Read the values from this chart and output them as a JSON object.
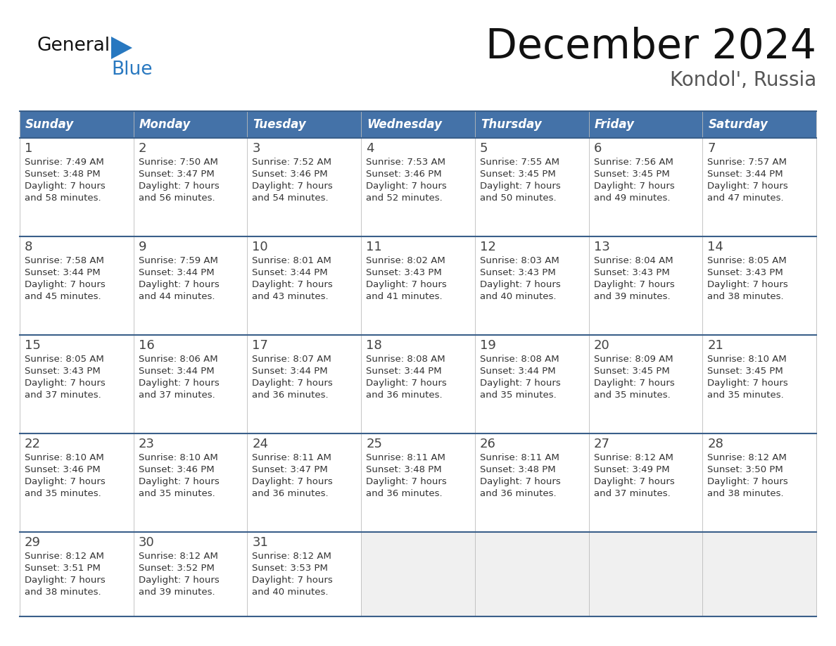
{
  "title": "December 2024",
  "subtitle": "Kondol', Russia",
  "header_bg": "#4472A8",
  "header_text_color": "#FFFFFF",
  "day_names": [
    "Sunday",
    "Monday",
    "Tuesday",
    "Wednesday",
    "Thursday",
    "Friday",
    "Saturday"
  ],
  "row_line_color": "#3A5F8A",
  "text_color": "#333333",
  "logo_general_color": "#1a1a1a",
  "logo_blue_color": "#2878C0",
  "days": [
    {
      "day": 1,
      "col": 0,
      "row": 0,
      "sunrise": "7:49 AM",
      "sunset": "3:48 PM",
      "daylight_h": "7",
      "daylight_m": "58"
    },
    {
      "day": 2,
      "col": 1,
      "row": 0,
      "sunrise": "7:50 AM",
      "sunset": "3:47 PM",
      "daylight_h": "7",
      "daylight_m": "56"
    },
    {
      "day": 3,
      "col": 2,
      "row": 0,
      "sunrise": "7:52 AM",
      "sunset": "3:46 PM",
      "daylight_h": "7",
      "daylight_m": "54"
    },
    {
      "day": 4,
      "col": 3,
      "row": 0,
      "sunrise": "7:53 AM",
      "sunset": "3:46 PM",
      "daylight_h": "7",
      "daylight_m": "52"
    },
    {
      "day": 5,
      "col": 4,
      "row": 0,
      "sunrise": "7:55 AM",
      "sunset": "3:45 PM",
      "daylight_h": "7",
      "daylight_m": "50"
    },
    {
      "day": 6,
      "col": 5,
      "row": 0,
      "sunrise": "7:56 AM",
      "sunset": "3:45 PM",
      "daylight_h": "7",
      "daylight_m": "49"
    },
    {
      "day": 7,
      "col": 6,
      "row": 0,
      "sunrise": "7:57 AM",
      "sunset": "3:44 PM",
      "daylight_h": "7",
      "daylight_m": "47"
    },
    {
      "day": 8,
      "col": 0,
      "row": 1,
      "sunrise": "7:58 AM",
      "sunset": "3:44 PM",
      "daylight_h": "7",
      "daylight_m": "45"
    },
    {
      "day": 9,
      "col": 1,
      "row": 1,
      "sunrise": "7:59 AM",
      "sunset": "3:44 PM",
      "daylight_h": "7",
      "daylight_m": "44"
    },
    {
      "day": 10,
      "col": 2,
      "row": 1,
      "sunrise": "8:01 AM",
      "sunset": "3:44 PM",
      "daylight_h": "7",
      "daylight_m": "43"
    },
    {
      "day": 11,
      "col": 3,
      "row": 1,
      "sunrise": "8:02 AM",
      "sunset": "3:43 PM",
      "daylight_h": "7",
      "daylight_m": "41"
    },
    {
      "day": 12,
      "col": 4,
      "row": 1,
      "sunrise": "8:03 AM",
      "sunset": "3:43 PM",
      "daylight_h": "7",
      "daylight_m": "40"
    },
    {
      "day": 13,
      "col": 5,
      "row": 1,
      "sunrise": "8:04 AM",
      "sunset": "3:43 PM",
      "daylight_h": "7",
      "daylight_m": "39"
    },
    {
      "day": 14,
      "col": 6,
      "row": 1,
      "sunrise": "8:05 AM",
      "sunset": "3:43 PM",
      "daylight_h": "7",
      "daylight_m": "38"
    },
    {
      "day": 15,
      "col": 0,
      "row": 2,
      "sunrise": "8:05 AM",
      "sunset": "3:43 PM",
      "daylight_h": "7",
      "daylight_m": "37"
    },
    {
      "day": 16,
      "col": 1,
      "row": 2,
      "sunrise": "8:06 AM",
      "sunset": "3:44 PM",
      "daylight_h": "7",
      "daylight_m": "37"
    },
    {
      "day": 17,
      "col": 2,
      "row": 2,
      "sunrise": "8:07 AM",
      "sunset": "3:44 PM",
      "daylight_h": "7",
      "daylight_m": "36"
    },
    {
      "day": 18,
      "col": 3,
      "row": 2,
      "sunrise": "8:08 AM",
      "sunset": "3:44 PM",
      "daylight_h": "7",
      "daylight_m": "36"
    },
    {
      "day": 19,
      "col": 4,
      "row": 2,
      "sunrise": "8:08 AM",
      "sunset": "3:44 PM",
      "daylight_h": "7",
      "daylight_m": "35"
    },
    {
      "day": 20,
      "col": 5,
      "row": 2,
      "sunrise": "8:09 AM",
      "sunset": "3:45 PM",
      "daylight_h": "7",
      "daylight_m": "35"
    },
    {
      "day": 21,
      "col": 6,
      "row": 2,
      "sunrise": "8:10 AM",
      "sunset": "3:45 PM",
      "daylight_h": "7",
      "daylight_m": "35"
    },
    {
      "day": 22,
      "col": 0,
      "row": 3,
      "sunrise": "8:10 AM",
      "sunset": "3:46 PM",
      "daylight_h": "7",
      "daylight_m": "35"
    },
    {
      "day": 23,
      "col": 1,
      "row": 3,
      "sunrise": "8:10 AM",
      "sunset": "3:46 PM",
      "daylight_h": "7",
      "daylight_m": "35"
    },
    {
      "day": 24,
      "col": 2,
      "row": 3,
      "sunrise": "8:11 AM",
      "sunset": "3:47 PM",
      "daylight_h": "7",
      "daylight_m": "36"
    },
    {
      "day": 25,
      "col": 3,
      "row": 3,
      "sunrise": "8:11 AM",
      "sunset": "3:48 PM",
      "daylight_h": "7",
      "daylight_m": "36"
    },
    {
      "day": 26,
      "col": 4,
      "row": 3,
      "sunrise": "8:11 AM",
      "sunset": "3:48 PM",
      "daylight_h": "7",
      "daylight_m": "36"
    },
    {
      "day": 27,
      "col": 5,
      "row": 3,
      "sunrise": "8:12 AM",
      "sunset": "3:49 PM",
      "daylight_h": "7",
      "daylight_m": "37"
    },
    {
      "day": 28,
      "col": 6,
      "row": 3,
      "sunrise": "8:12 AM",
      "sunset": "3:50 PM",
      "daylight_h": "7",
      "daylight_m": "38"
    },
    {
      "day": 29,
      "col": 0,
      "row": 4,
      "sunrise": "8:12 AM",
      "sunset": "3:51 PM",
      "daylight_h": "7",
      "daylight_m": "38"
    },
    {
      "day": 30,
      "col": 1,
      "row": 4,
      "sunrise": "8:12 AM",
      "sunset": "3:52 PM",
      "daylight_h": "7",
      "daylight_m": "39"
    },
    {
      "day": 31,
      "col": 2,
      "row": 4,
      "sunrise": "8:12 AM",
      "sunset": "3:53 PM",
      "daylight_h": "7",
      "daylight_m": "40"
    }
  ]
}
